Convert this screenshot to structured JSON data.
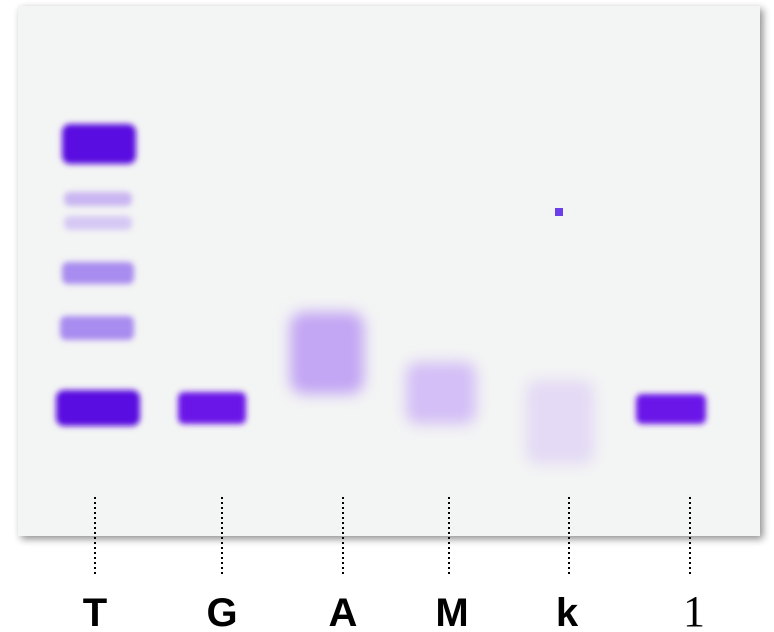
{
  "lanes": [
    {
      "label": "T"
    },
    {
      "label": "G"
    },
    {
      "label": "A"
    },
    {
      "label": "M"
    },
    {
      "label": "k"
    },
    {
      "label": "1"
    }
  ]
}
